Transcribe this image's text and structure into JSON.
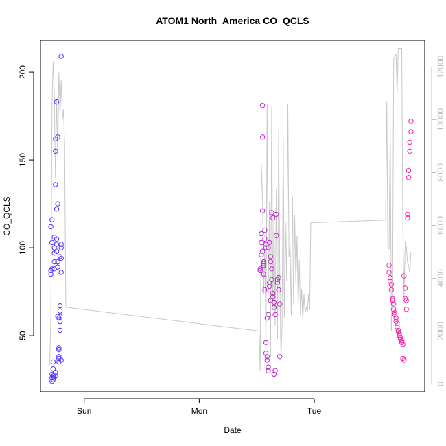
{
  "chart_data": {
    "type": "scatter",
    "title": "ATOM1 North_America CO_QCLS",
    "xlabel": "Date",
    "ylabel": "CO_QCLS",
    "x_unit": "days",
    "x_ticks": [
      {
        "label": "Sun",
        "value": 1.0
      },
      {
        "label": "Mon",
        "value": 2.0
      },
      {
        "label": "Tue",
        "value": 3.0
      }
    ],
    "xlim": [
      0.62,
      3.96
    ],
    "ylim": [
      18,
      218
    ],
    "y_ticks": [
      50,
      100,
      150,
      200
    ],
    "y2lim": [
      -300,
      13000
    ],
    "y2_ticks": [
      0,
      2000,
      4000,
      6000,
      8000,
      10000,
      12000
    ],
    "point_color_start": "#5533ff",
    "point_color_end": "#ff22aa",
    "line_color": "#c8c8c8",
    "grid": false,
    "series": [
      {
        "marker": "circle",
        "x": [
          0.71,
          0.71,
          0.71,
          0.72,
          0.72,
          0.72,
          0.72,
          0.72,
          0.72,
          0.73,
          0.73,
          0.73,
          0.73,
          0.73,
          0.74,
          0.74,
          0.74,
          0.74,
          0.74,
          0.75,
          0.75,
          0.75,
          0.75,
          0.75,
          0.76,
          0.76,
          0.76,
          0.76,
          0.76,
          0.77,
          0.77,
          0.77,
          0.77,
          0.77,
          0.78,
          0.78,
          0.78,
          0.78,
          0.78,
          0.78,
          0.79,
          0.79,
          0.79,
          0.79,
          0.79,
          0.79,
          0.8,
          0.8,
          0.8,
          0.8,
          0.8,
          0.8,
          2.53,
          2.53,
          2.54,
          2.54,
          2.54,
          2.55,
          2.55,
          2.55,
          2.55,
          2.56,
          2.56,
          2.56,
          2.56,
          2.57,
          2.57,
          2.57,
          2.58,
          2.58,
          2.58,
          2.58,
          2.59,
          2.59,
          2.59,
          2.6,
          2.6,
          2.6,
          2.6,
          2.61,
          2.61,
          2.61,
          2.62,
          2.62,
          2.62,
          2.63,
          2.63,
          2.63,
          2.64,
          2.64,
          2.64,
          2.65,
          2.65,
          2.65,
          2.66,
          2.66,
          2.67,
          2.67,
          2.68,
          2.68,
          2.69,
          2.69,
          2.7,
          2.7,
          3.65,
          3.65,
          3.66,
          3.66,
          3.67,
          3.67,
          3.68,
          3.68,
          3.69,
          3.69,
          3.7,
          3.7,
          3.71,
          3.71,
          3.72,
          3.72,
          3.73,
          3.73,
          3.74,
          3.74,
          3.75,
          3.75,
          3.76,
          3.76,
          3.77,
          3.77,
          3.78,
          3.78,
          3.79,
          3.79,
          3.8,
          3.8,
          3.81,
          3.81,
          3.82,
          3.82,
          3.83,
          3.83,
          3.84,
          3.84
        ],
        "y": [
          85,
          87,
          112,
          116,
          103,
          88,
          24,
          26,
          28,
          31,
          35,
          27,
          25,
          26,
          92,
          100,
          97,
          106,
          88,
          27,
          29,
          155,
          162,
          136,
          183,
          105,
          98,
          102,
          122,
          125,
          163,
          61,
          89,
          92,
          43,
          35,
          37,
          38,
          42,
          60,
          64,
          67,
          53,
          58,
          61,
          95,
          94,
          100,
          102,
          86,
          36,
          209,
          87,
          88,
          96,
          103,
          108,
          163,
          181,
          121,
          98,
          92,
          91,
          90,
          85,
          76,
          110,
          105,
          102,
          100,
          46,
          40,
          38,
          36,
          60,
          62,
          30,
          32,
          100,
          103,
          80,
          78,
          70,
          95,
          92,
          88,
          82,
          120,
          117,
          74,
          72,
          69,
          66,
          28,
          30,
          62,
          107,
          119,
          82,
          80,
          83,
          76,
          68,
          38,
          90,
          86,
          83,
          81,
          79,
          76,
          71,
          70,
          68,
          65,
          63,
          62,
          60,
          58,
          57,
          55,
          53,
          52,
          51,
          50,
          49,
          48,
          47,
          46,
          45,
          37,
          36,
          84,
          77,
          71,
          70,
          65,
          117,
          119,
          140,
          144,
          155,
          160,
          166,
          172
        ]
      }
    ],
    "secondary_series": {
      "axis": "right",
      "x": [
        0.7,
        0.71,
        0.72,
        0.73,
        0.74,
        0.75,
        0.76,
        0.77,
        0.78,
        0.79,
        0.8,
        0.81,
        0.82,
        0.83,
        0.84,
        2.52,
        2.53,
        2.54,
        2.55,
        2.56,
        2.57,
        2.58,
        2.59,
        2.6,
        2.61,
        2.62,
        2.63,
        2.64,
        2.65,
        2.66,
        2.67,
        2.68,
        2.69,
        2.7,
        2.71,
        2.72,
        2.73,
        2.74,
        2.75,
        2.76,
        2.77,
        2.78,
        2.79,
        2.8,
        2.81,
        2.82,
        2.83,
        2.84,
        2.85,
        2.86,
        2.87,
        2.88,
        2.89,
        2.9,
        2.91,
        2.92,
        2.93,
        2.94,
        2.95,
        2.96,
        2.97,
        3.62,
        3.63,
        3.64,
        3.65,
        3.66,
        3.67,
        3.68,
        3.69,
        3.7,
        3.71,
        3.72,
        3.73,
        3.74,
        3.75,
        3.76,
        3.77,
        3.78,
        3.79,
        3.8,
        3.81,
        3.82,
        3.83,
        3.84
      ],
      "y": [
        700,
        2500,
        10500,
        12200,
        11000,
        7800,
        10800,
        8600,
        11800,
        10200,
        11500,
        10000,
        10400,
        9000,
        2900,
        2000,
        500,
        8300,
        7100,
        3400,
        5100,
        1500,
        10600,
        3300,
        6900,
        1000,
        10500,
        2800,
        6600,
        2200,
        7400,
        1700,
        9600,
        4200,
        1000,
        2200,
        9300,
        2500,
        6100,
        3900,
        10600,
        4800,
        5200,
        2600,
        7100,
        3000,
        6400,
        3800,
        5600,
        2900,
        4700,
        2600,
        3600,
        2400,
        3400,
        2700,
        2900,
        2700,
        3400,
        2800,
        6100,
        6200,
        10700,
        5200,
        5100,
        9700,
        2000,
        2900,
        12300,
        12400,
        12500,
        11000,
        12700,
        12700,
        12700,
        12700,
        6000,
        3200,
        5400,
        5200,
        4600,
        4500,
        4200,
        5000
      ]
    }
  }
}
